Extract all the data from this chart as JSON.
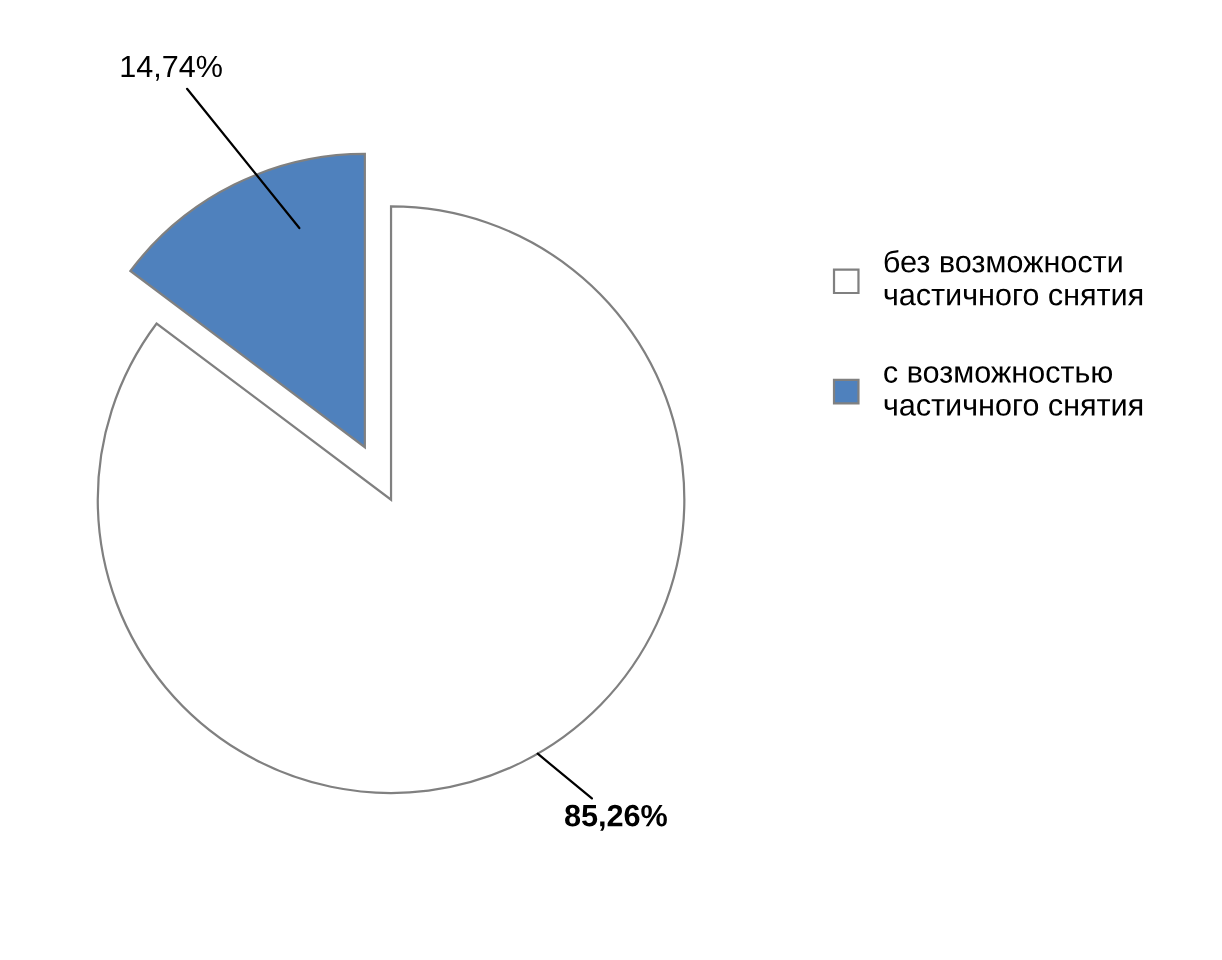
{
  "chart_data": {
    "type": "pie",
    "categories": [
      "без возможности частичного снятия",
      "с возможностью частичного снятия"
    ],
    "values": [
      85.26,
      14.74
    ],
    "colors": [
      "#ffffff",
      "#4f81bd"
    ],
    "value_labels": [
      "85,26%",
      "14,74%"
    ],
    "legend": "right"
  }
}
